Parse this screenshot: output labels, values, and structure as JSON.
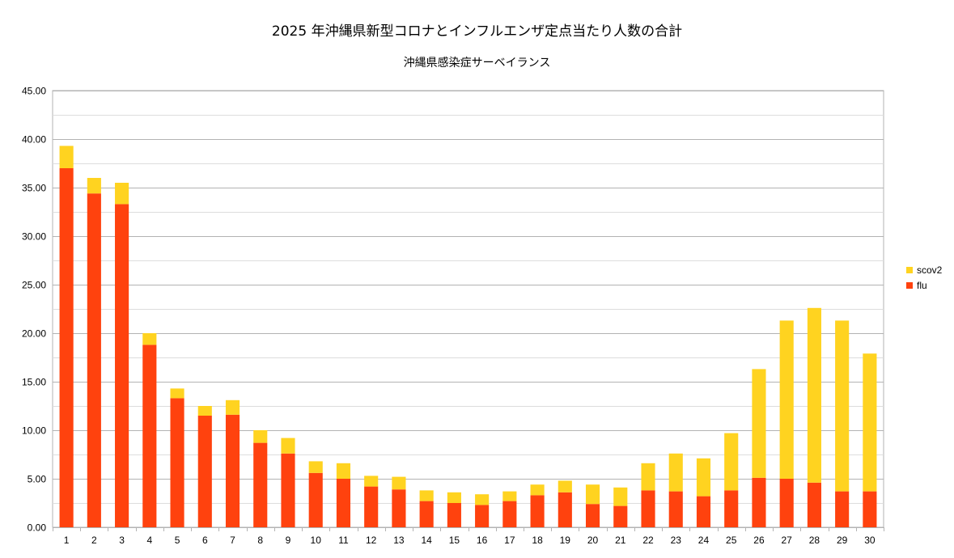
{
  "chart_data": {
    "type": "bar",
    "stacked": true,
    "title": "2025 年沖縄県新型コロナとインフルエンザ定点当たり人数の合計",
    "subtitle": "沖縄県感染症サーベイランス",
    "xlabel": "",
    "ylabel": "",
    "ylim": [
      0,
      45
    ],
    "ytick_step": 5,
    "grid": true,
    "legend_position": "right",
    "categories": [
      "1",
      "2",
      "3",
      "4",
      "5",
      "6",
      "7",
      "8",
      "9",
      "10",
      "11",
      "12",
      "13",
      "14",
      "15",
      "16",
      "17",
      "18",
      "19",
      "20",
      "21",
      "22",
      "23",
      "24",
      "25",
      "26",
      "27",
      "28",
      "29",
      "30"
    ],
    "series": [
      {
        "name": "flu",
        "color": "#ff420e",
        "values": [
          37.0,
          34.4,
          33.3,
          18.8,
          13.3,
          11.5,
          11.6,
          8.7,
          7.6,
          5.6,
          5.0,
          4.2,
          3.9,
          2.7,
          2.5,
          2.3,
          2.7,
          3.3,
          3.6,
          2.4,
          2.2,
          3.8,
          3.7,
          3.2,
          3.8,
          5.1,
          5.0,
          4.6,
          3.7,
          3.7
        ]
      },
      {
        "name": "scov2",
        "color": "#ffd320",
        "values": [
          2.3,
          1.6,
          2.2,
          1.2,
          1.0,
          1.0,
          1.5,
          1.3,
          1.6,
          1.2,
          1.6,
          1.1,
          1.3,
          1.1,
          1.1,
          1.1,
          1.0,
          1.1,
          1.2,
          2.0,
          1.9,
          2.8,
          3.9,
          3.9,
          5.9,
          11.2,
          16.3,
          18.0,
          17.6,
          14.2
        ]
      }
    ]
  }
}
